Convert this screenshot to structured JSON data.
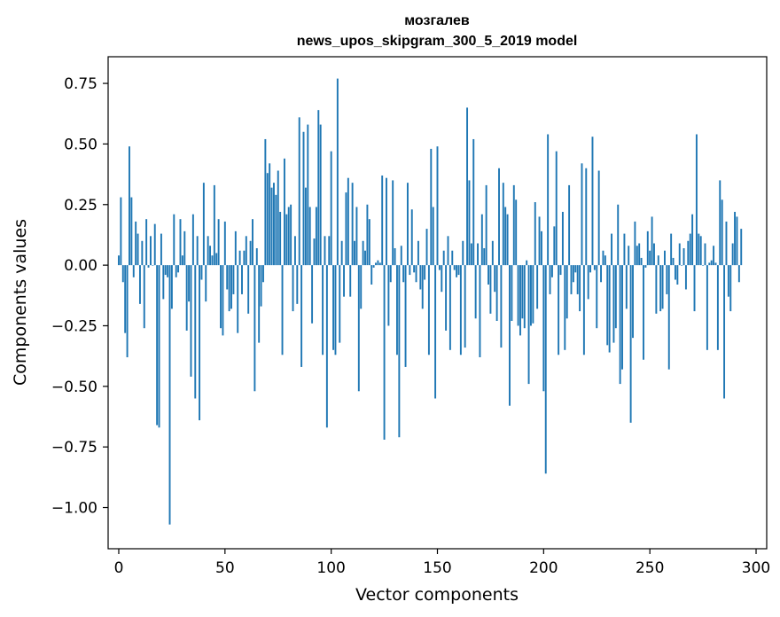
{
  "chart_data": {
    "type": "bar",
    "title": "мозгалев",
    "subtitle": "news_upos_skipgram_300_5_2019 model",
    "xlabel": "Vector components",
    "ylabel": "Components values",
    "xlim": [
      -5,
      305
    ],
    "ylim": [
      -1.17,
      0.86
    ],
    "xticks": [
      0,
      50,
      100,
      150,
      200,
      250,
      300
    ],
    "yticks": [
      0.75,
      0.5,
      0.25,
      0.0,
      -0.25,
      -0.5,
      -0.75,
      -1.0
    ],
    "ytick_labels": [
      "0.75",
      "0.50",
      "0.25",
      "0.00",
      "−0.25",
      "−0.50",
      "−0.75",
      "−1.00"
    ],
    "xtick_labels": [
      "0",
      "50",
      "100",
      "150",
      "200",
      "250",
      "300"
    ],
    "grid": false,
    "bar_color": "#1f77b4",
    "x_start": 0,
    "values": [
      0.04,
      0.28,
      -0.07,
      -0.28,
      -0.38,
      0.49,
      0.28,
      -0.05,
      0.18,
      0.13,
      -0.16,
      0.1,
      -0.26,
      0.19,
      -0.01,
      0.12,
      0.0,
      0.17,
      -0.66,
      -0.67,
      0.13,
      -0.14,
      -0.04,
      -0.05,
      -1.07,
      -0.18,
      0.21,
      -0.05,
      -0.03,
      0.19,
      0.04,
      0.14,
      -0.27,
      -0.15,
      -0.46,
      0.21,
      -0.55,
      0.12,
      -0.64,
      -0.06,
      0.34,
      -0.15,
      0.12,
      0.08,
      0.04,
      0.33,
      0.05,
      0.19,
      -0.26,
      -0.29,
      0.18,
      -0.1,
      -0.19,
      -0.18,
      -0.12,
      0.14,
      -0.28,
      0.06,
      -0.12,
      0.06,
      0.12,
      -0.2,
      0.1,
      0.19,
      -0.52,
      0.07,
      -0.32,
      -0.17,
      -0.07,
      0.52,
      0.38,
      0.42,
      0.32,
      0.34,
      0.29,
      0.39,
      0.22,
      -0.37,
      0.44,
      0.21,
      0.24,
      0.25,
      -0.19,
      0.12,
      -0.16,
      0.61,
      -0.42,
      0.55,
      0.32,
      0.58,
      0.24,
      -0.24,
      0.11,
      0.24,
      0.64,
      0.58,
      -0.37,
      0.12,
      -0.67,
      0.12,
      0.47,
      -0.35,
      -0.37,
      0.77,
      -0.32,
      0.1,
      -0.13,
      0.3,
      0.36,
      -0.13,
      0.34,
      0.1,
      0.24,
      -0.52,
      -0.18,
      0.1,
      0.06,
      0.25,
      0.19,
      -0.08,
      -0.01,
      0.01,
      0.02,
      0.01,
      0.37,
      -0.72,
      0.36,
      -0.25,
      -0.07,
      0.35,
      0.07,
      -0.37,
      -0.71,
      0.08,
      -0.07,
      -0.42,
      0.34,
      -0.04,
      0.23,
      -0.03,
      -0.07,
      0.1,
      -0.1,
      -0.18,
      -0.06,
      0.15,
      -0.37,
      0.48,
      0.24,
      -0.55,
      0.49,
      -0.02,
      -0.11,
      0.06,
      -0.27,
      0.12,
      -0.35,
      0.06,
      -0.02,
      -0.05,
      -0.04,
      -0.37,
      0.1,
      -0.34,
      0.65,
      0.35,
      0.09,
      0.52,
      -0.22,
      0.09,
      -0.38,
      0.21,
      0.07,
      0.33,
      -0.08,
      -0.2,
      0.1,
      -0.11,
      -0.23,
      0.4,
      -0.34,
      0.34,
      0.24,
      0.21,
      -0.58,
      -0.23,
      0.33,
      0.27,
      -0.25,
      -0.29,
      -0.22,
      -0.26,
      0.02,
      -0.49,
      -0.25,
      -0.24,
      0.26,
      -0.18,
      0.2,
      0.14,
      -0.52,
      -0.86,
      0.54,
      -0.12,
      -0.05,
      0.16,
      0.47,
      -0.37,
      -0.04,
      0.22,
      -0.35,
      -0.22,
      0.33,
      -0.12,
      -0.07,
      -0.03,
      -0.12,
      -0.19,
      0.42,
      -0.37,
      0.4,
      -0.14,
      -0.03,
      0.53,
      -0.02,
      -0.26,
      0.39,
      -0.07,
      0.06,
      0.04,
      -0.33,
      -0.36,
      0.13,
      -0.32,
      -0.26,
      0.25,
      -0.49,
      -0.43,
      0.13,
      -0.18,
      0.08,
      -0.65,
      -0.3,
      0.18,
      0.08,
      0.09,
      0.03,
      -0.39,
      -0.01,
      0.14,
      0.06,
      0.2,
      0.09,
      -0.2,
      0.04,
      -0.19,
      -0.18,
      0.06,
      -0.12,
      -0.43,
      0.13,
      0.03,
      -0.06,
      -0.08,
      0.09,
      0.0,
      0.07,
      -0.1,
      0.1,
      0.13,
      0.21,
      -0.19,
      0.54,
      0.13,
      0.12,
      0.0,
      0.09,
      -0.35,
      0.01,
      0.02,
      0.08,
      0.01,
      -0.35,
      0.35,
      0.27,
      -0.55,
      0.18,
      -0.13,
      -0.19,
      0.09,
      0.22,
      0.2,
      -0.07,
      0.15
    ]
  }
}
